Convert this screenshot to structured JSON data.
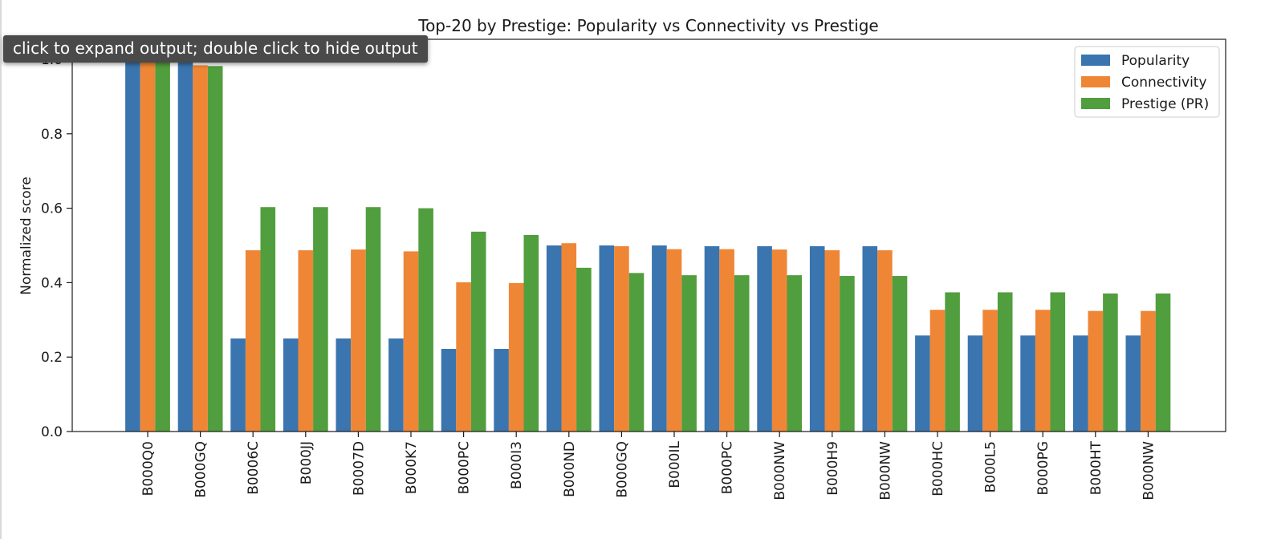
{
  "tooltip": "click to expand output; double click to hide output",
  "chart_data": {
    "type": "bar",
    "title": "Top-20 by Prestige: Popularity vs Connectivity vs Prestige",
    "xlabel": "",
    "ylabel": "Normalized score",
    "ylim": [
      0,
      1.0
    ],
    "yticks": [
      "0.0",
      "0.2",
      "0.4",
      "0.6",
      "0.8",
      "1.0"
    ],
    "grid": false,
    "legend_position": "top-right",
    "categories": [
      "B000Q0",
      "B000GQ",
      "B0006C",
      "B000JJ",
      "B0007D",
      "B000K7",
      "B000PC",
      "B000I3",
      "B000ND",
      "B000GQ",
      "B000IL",
      "B000PC",
      "B000NW",
      "B000H9",
      "B000NW",
      "B000HC",
      "B000L5",
      "B000PG",
      "B000HT",
      "B000NW"
    ],
    "series": [
      {
        "name": "Popularity",
        "color": "#3a75af",
        "values": [
          1.0,
          1.0,
          0.25,
          0.25,
          0.25,
          0.25,
          0.222,
          0.222,
          0.5,
          0.5,
          0.5,
          0.498,
          0.498,
          0.498,
          0.498,
          0.258,
          0.258,
          0.258,
          0.258,
          0.258
        ]
      },
      {
        "name": "Connectivity",
        "color": "#ef8636",
        "values": [
          1.0,
          0.984,
          0.487,
          0.487,
          0.489,
          0.484,
          0.401,
          0.399,
          0.506,
          0.498,
          0.49,
          0.49,
          0.489,
          0.487,
          0.487,
          0.327,
          0.327,
          0.327,
          0.324,
          0.324
        ]
      },
      {
        "name": "Prestige (PR)",
        "color": "#519e3e",
        "values": [
          1.0,
          0.982,
          0.603,
          0.603,
          0.603,
          0.6,
          0.537,
          0.528,
          0.44,
          0.426,
          0.42,
          0.42,
          0.42,
          0.418,
          0.418,
          0.374,
          0.374,
          0.374,
          0.371,
          0.371
        ]
      }
    ]
  }
}
